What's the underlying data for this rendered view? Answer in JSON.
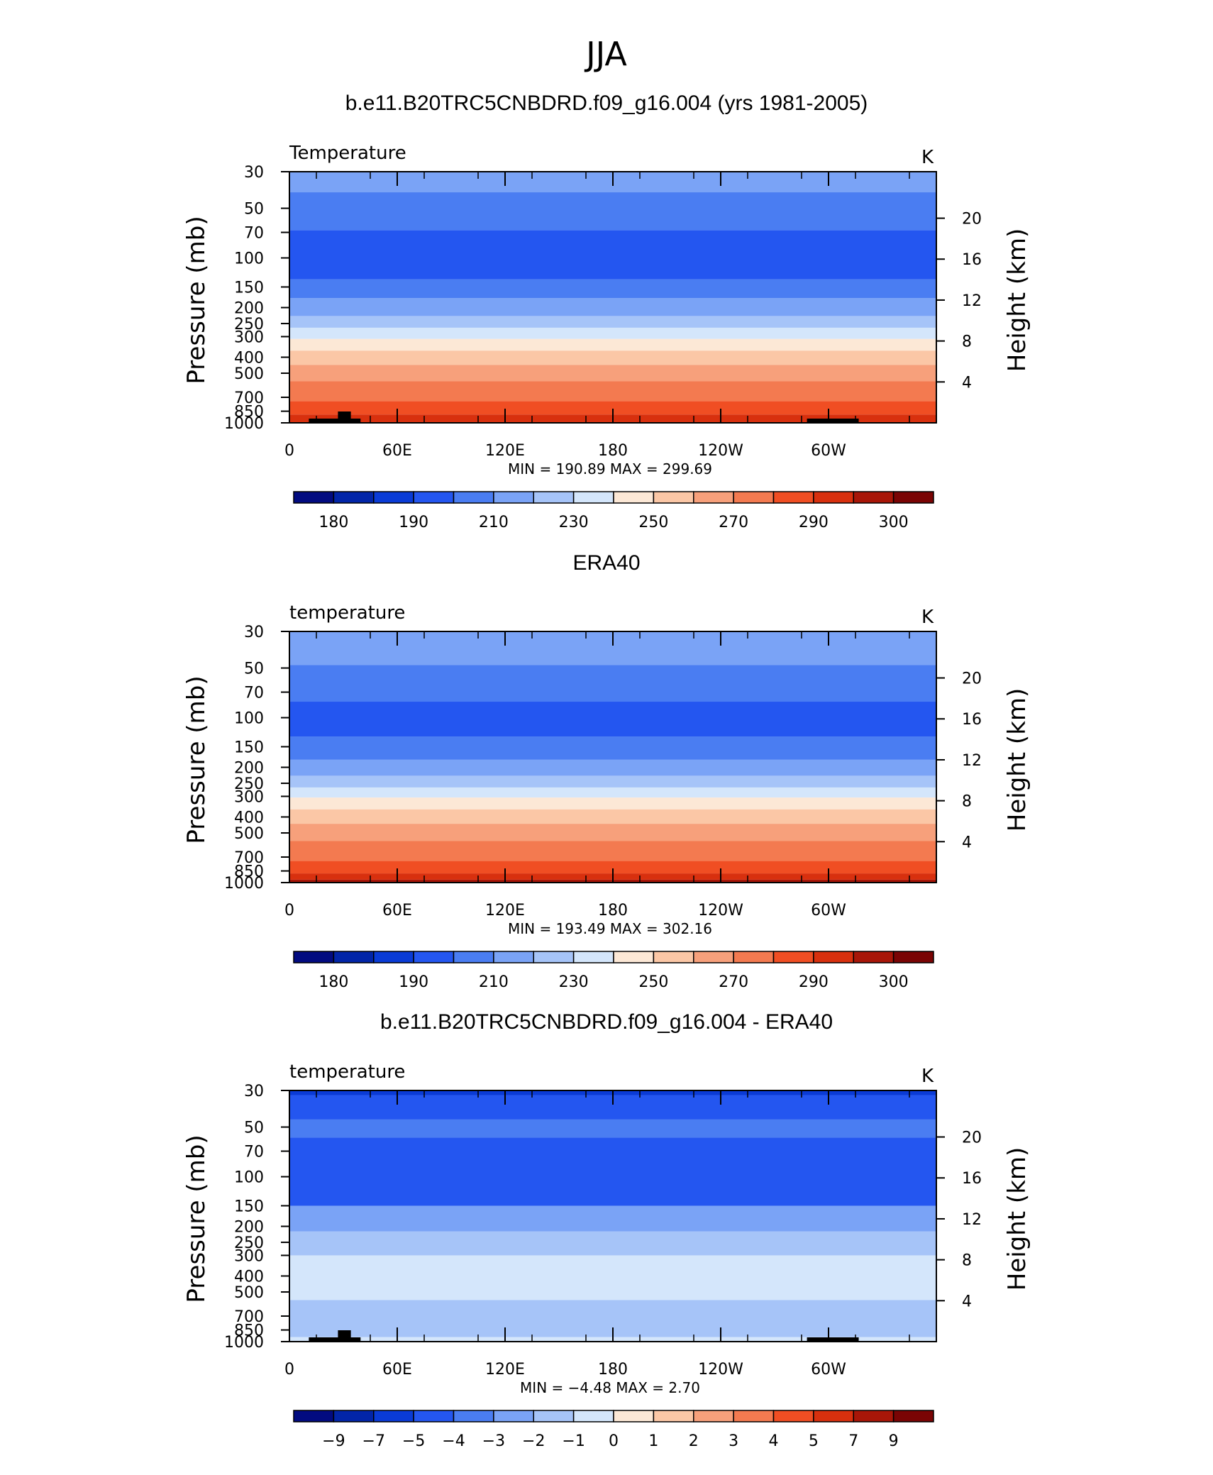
{
  "figure": {
    "title": "JJA"
  },
  "colors": {
    "temp_palette": [
      "#020b80",
      "#0225a8",
      "#0a3bd6",
      "#2456f0",
      "#4a7df2",
      "#7aa3f6",
      "#a6c4f8",
      "#d4e6fb",
      "#fce8d6",
      "#fbc7a6",
      "#f7a07b",
      "#f37a50",
      "#f04e23",
      "#d8300e",
      "#a81608",
      "#7a0404"
    ],
    "diff_palette": [
      "#020b80",
      "#0225a8",
      "#0a3bd6",
      "#2456f0",
      "#4a7df2",
      "#7aa3f6",
      "#a6c4f8",
      "#d4e6fb",
      "#fce8d6",
      "#fbc7a6",
      "#f7a07b",
      "#f37a50",
      "#f04e23",
      "#d8300e",
      "#a81608",
      "#7a0404"
    ],
    "land_mask": "#000000"
  },
  "chart_data": [
    {
      "type": "heatmap",
      "title": "b.e11.B20TRC5CNBDRD.f09_g16.004 (yrs 1981-2005)",
      "subtitle_left": "Temperature",
      "units": "K",
      "ylabel": "Pressure  (mb)",
      "ylabel_right": "Height  (km)",
      "x_ticks": [
        "0",
        "60E",
        "120E",
        "180",
        "120W",
        "60W"
      ],
      "y_ticks": [
        "30",
        "50",
        "70",
        "100",
        "150",
        "200",
        "250",
        "300",
        "400",
        "500",
        "700",
        "850",
        "1000"
      ],
      "y_right_ticks": [
        "20",
        "16",
        "12",
        "8",
        "4"
      ],
      "stats": "MIN =  190.89   MAX =  299.69",
      "colorbar_labels": [
        "180",
        "190",
        "210",
        "230",
        "250",
        "270",
        "290",
        "300"
      ],
      "layers": [
        {
          "p_top": 30,
          "p_bot": 40,
          "color_index": 5
        },
        {
          "p_top": 40,
          "p_bot": 68,
          "color_index": 4
        },
        {
          "p_top": 68,
          "p_bot": 135,
          "color_index": 3
        },
        {
          "p_top": 135,
          "p_bot": 175,
          "color_index": 4
        },
        {
          "p_top": 175,
          "p_bot": 225,
          "color_index": 5
        },
        {
          "p_top": 225,
          "p_bot": 265,
          "color_index": 6
        },
        {
          "p_top": 265,
          "p_bot": 310,
          "color_index": 7
        },
        {
          "p_top": 310,
          "p_bot": 365,
          "color_index": 8
        },
        {
          "p_top": 365,
          "p_bot": 445,
          "color_index": 9
        },
        {
          "p_top": 445,
          "p_bot": 560,
          "color_index": 10
        },
        {
          "p_top": 560,
          "p_bot": 740,
          "color_index": 11
        },
        {
          "p_top": 740,
          "p_bot": 890,
          "color_index": 12
        },
        {
          "p_top": 890,
          "p_bot": 1000,
          "color_index": 13
        }
      ],
      "land": true
    },
    {
      "type": "heatmap",
      "title": "ERA40",
      "subtitle_left": "temperature",
      "units": "K",
      "ylabel": "Pressure  (mb)",
      "ylabel_right": "Height  (km)",
      "x_ticks": [
        "0",
        "60E",
        "120E",
        "180",
        "120W",
        "60W"
      ],
      "y_ticks": [
        "30",
        "50",
        "70",
        "100",
        "150",
        "200",
        "250",
        "300",
        "400",
        "500",
        "700",
        "850",
        "1000"
      ],
      "y_right_ticks": [
        "20",
        "16",
        "12",
        "8",
        "4"
      ],
      "stats": "MIN =  193.49   MAX =  302.16",
      "colorbar_labels": [
        "180",
        "190",
        "210",
        "230",
        "250",
        "270",
        "290",
        "300"
      ],
      "layers": [
        {
          "p_top": 30,
          "p_bot": 48,
          "color_index": 5
        },
        {
          "p_top": 48,
          "p_bot": 80,
          "color_index": 4
        },
        {
          "p_top": 80,
          "p_bot": 130,
          "color_index": 3
        },
        {
          "p_top": 130,
          "p_bot": 180,
          "color_index": 4
        },
        {
          "p_top": 180,
          "p_bot": 225,
          "color_index": 5
        },
        {
          "p_top": 225,
          "p_bot": 265,
          "color_index": 6
        },
        {
          "p_top": 265,
          "p_bot": 305,
          "color_index": 7
        },
        {
          "p_top": 305,
          "p_bot": 360,
          "color_index": 8
        },
        {
          "p_top": 360,
          "p_bot": 440,
          "color_index": 9
        },
        {
          "p_top": 440,
          "p_bot": 560,
          "color_index": 10
        },
        {
          "p_top": 560,
          "p_bot": 740,
          "color_index": 11
        },
        {
          "p_top": 740,
          "p_bot": 880,
          "color_index": 12
        },
        {
          "p_top": 880,
          "p_bot": 960,
          "color_index": 13
        },
        {
          "p_top": 960,
          "p_bot": 1000,
          "color_index": 14
        }
      ],
      "land": false
    },
    {
      "type": "heatmap",
      "title": "b.e11.B20TRC5CNBDRD.f09_g16.004 - ERA40",
      "subtitle_left": "temperature",
      "units": "K",
      "ylabel": "Pressure  (mb)",
      "ylabel_right": "Height  (km)",
      "x_ticks": [
        "0",
        "60E",
        "120E",
        "180",
        "120W",
        "60W"
      ],
      "y_ticks": [
        "30",
        "50",
        "70",
        "100",
        "150",
        "200",
        "250",
        "300",
        "400",
        "500",
        "700",
        "850",
        "1000"
      ],
      "y_right_ticks": [
        "20",
        "16",
        "12",
        "8",
        "4"
      ],
      "stats": "MIN =   −4.48   MAX =    2.70",
      "colorbar_labels": [
        "−9",
        "−7",
        "−5",
        "−4",
        "−3",
        "−2",
        "−1",
        "0",
        "1",
        "2",
        "3",
        "4",
        "5",
        "7",
        "9"
      ],
      "layers": [
        {
          "p_top": 30,
          "p_bot": 32,
          "color_index": 2
        },
        {
          "p_top": 32,
          "p_bot": 45,
          "color_index": 3
        },
        {
          "p_top": 45,
          "p_bot": 58,
          "color_index": 4
        },
        {
          "p_top": 58,
          "p_bot": 150,
          "color_index": 3
        },
        {
          "p_top": 150,
          "p_bot": 215,
          "color_index": 5
        },
        {
          "p_top": 215,
          "p_bot": 300,
          "color_index": 6
        },
        {
          "p_top": 300,
          "p_bot": 560,
          "color_index": 7
        },
        {
          "p_top": 560,
          "p_bot": 940,
          "color_index": 6
        },
        {
          "p_top": 940,
          "p_bot": 1000,
          "color_index": 7
        }
      ],
      "land": true
    }
  ]
}
